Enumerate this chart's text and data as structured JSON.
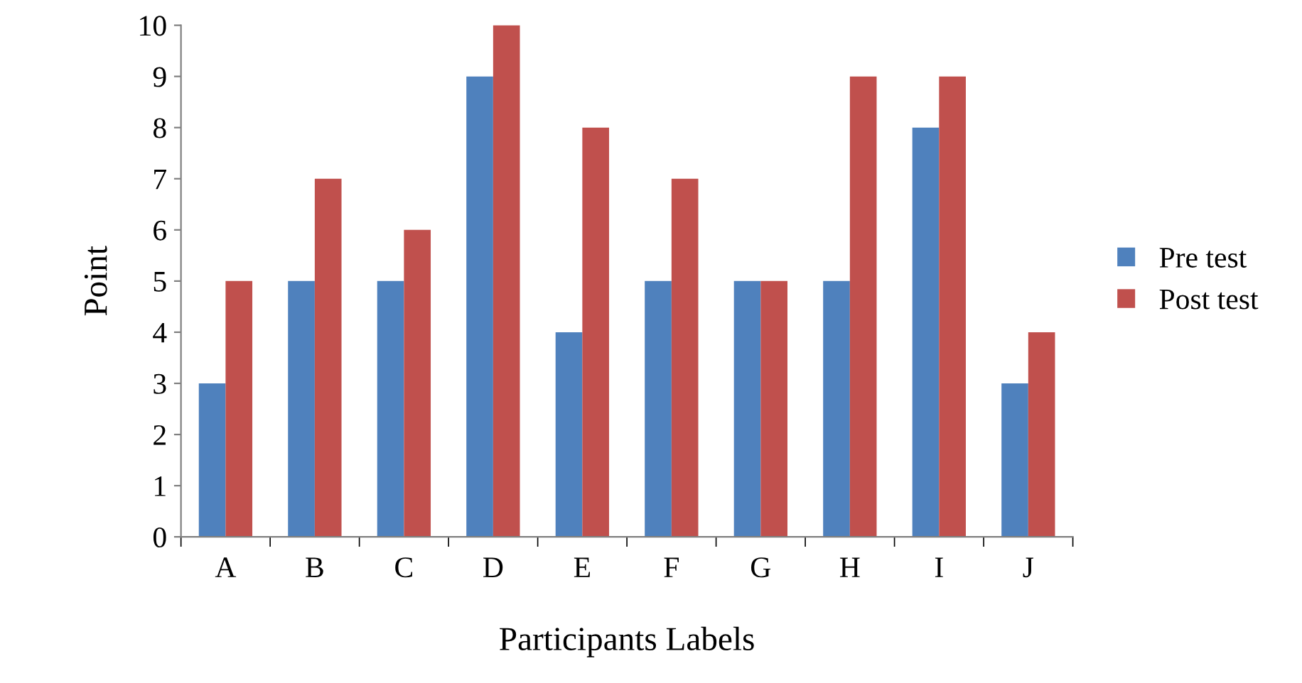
{
  "chart_data": {
    "type": "bar",
    "xlabel": "Participants Labels",
    "ylabel": "Point",
    "categories": [
      "A",
      "B",
      "C",
      "D",
      "E",
      "F",
      "G",
      "H",
      "I",
      "J"
    ],
    "series": [
      {
        "name": "Pre test",
        "color": "#4f81bd",
        "values": [
          3,
          5,
          5,
          9,
          4,
          5,
          5,
          5,
          8,
          3
        ]
      },
      {
        "name": "Post test",
        "color": "#c0504d",
        "values": [
          5,
          7,
          6,
          10,
          8,
          7,
          5,
          9,
          9,
          4
        ]
      }
    ],
    "ylim": [
      0,
      10
    ],
    "yticks": [
      0,
      1,
      2,
      3,
      4,
      5,
      6,
      7,
      8,
      9,
      10
    ],
    "grid": false,
    "legend": "right"
  }
}
